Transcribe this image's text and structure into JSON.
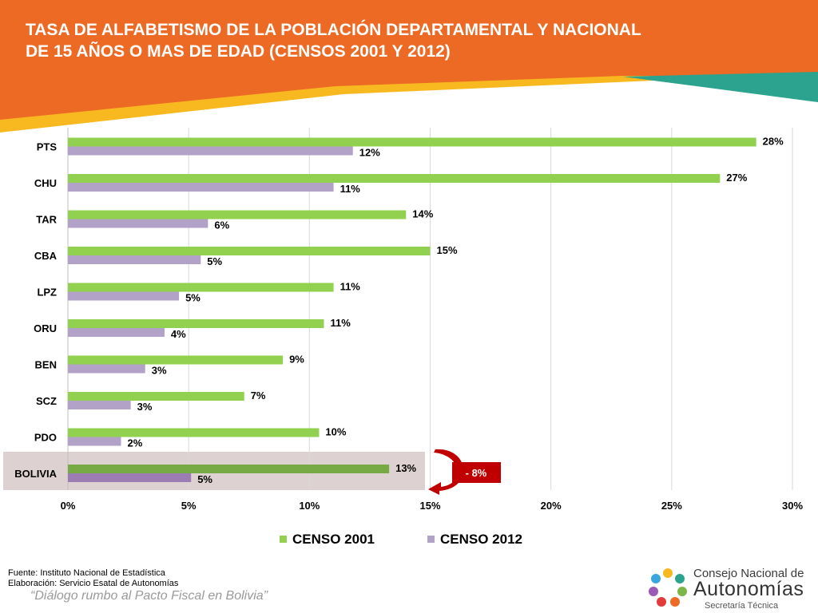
{
  "title": {
    "line1": "TASA DE ALFABETISMO DE LA POBLACIÓN DEPARTAMENTAL Y NACIONAL",
    "line2": "DE 15 AÑOS O MAS DE EDAD (CENSOS 2001 Y 2012)"
  },
  "colors": {
    "orange": "#ec6a24",
    "yellow": "#f7b91f",
    "teal": "#2ba38e",
    "green": "#92d050",
    "lavender": "#b3a2c7",
    "highlight": "#ded1d1",
    "arrow_red": "#c00000"
  },
  "chart_data": {
    "type": "bar",
    "orientation": "horizontal",
    "categories": [
      "PTS",
      "CHU",
      "TAR",
      "CBA",
      "LPZ",
      "ORU",
      "BEN",
      "SCZ",
      "PDO",
      "BOLIVIA"
    ],
    "series": [
      {
        "name": "CENSO 2001",
        "color": "#92d050",
        "values": [
          28.5,
          27,
          14,
          15,
          11,
          10.6,
          8.9,
          7.3,
          10.4,
          13.3
        ],
        "labels": [
          "28%",
          "27%",
          "14%",
          "15%",
          "11%",
          "11%",
          "9%",
          "7%",
          "10%",
          "13%"
        ]
      },
      {
        "name": "CENSO 2012",
        "color": "#b3a2c7",
        "values": [
          11.8,
          11,
          5.8,
          5.5,
          4.6,
          4,
          3.2,
          2.6,
          2.2,
          5.1
        ],
        "labels": [
          "12%",
          "11%",
          "6%",
          "5%",
          "5%",
          "4%",
          "3%",
          "3%",
          "2%",
          "5%"
        ]
      }
    ],
    "xlim": [
      0,
      30
    ],
    "ticks": [
      0,
      5,
      10,
      15,
      20,
      25,
      30
    ],
    "tick_labels": [
      "0%",
      "5%",
      "10%",
      "15%",
      "20%",
      "25%",
      "30%"
    ],
    "grid": true,
    "legend": "bottom",
    "highlight_category": "BOLIVIA",
    "annotation": "- 8%"
  },
  "footer": {
    "source": "Fuente: Instituto Nacional de Estadística",
    "elaboration": "Elaboración: Servicio Esatal de Autonomías",
    "slogan": "“Diálogo rumbo al Pacto Fiscal en Bolivia”"
  },
  "logo": {
    "line1": "Consejo Nacional de",
    "line2": "Autonomías",
    "line3": "Secretaría Técnica",
    "icon": "hands-circle-logo"
  }
}
